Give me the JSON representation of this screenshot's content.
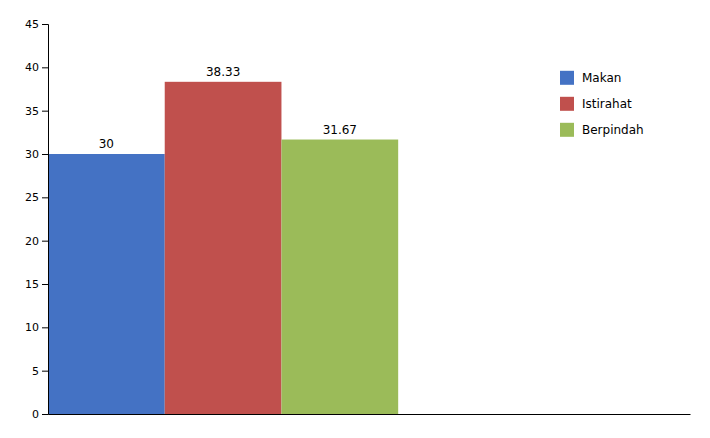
{
  "chart_data": {
    "type": "bar",
    "categories": [
      "Makan",
      "Istirahat",
      "Berpindah"
    ],
    "values": [
      30,
      38.33,
      31.67
    ],
    "colors": [
      "#4472C4",
      "#C0504D",
      "#9BBB59"
    ],
    "ylim": [
      0,
      45
    ],
    "yticks": [
      0,
      5,
      10,
      15,
      20,
      25,
      30,
      35,
      40,
      45
    ],
    "data_labels": true,
    "legend": "upper right",
    "grid": false,
    "tick_labels": "y"
  }
}
